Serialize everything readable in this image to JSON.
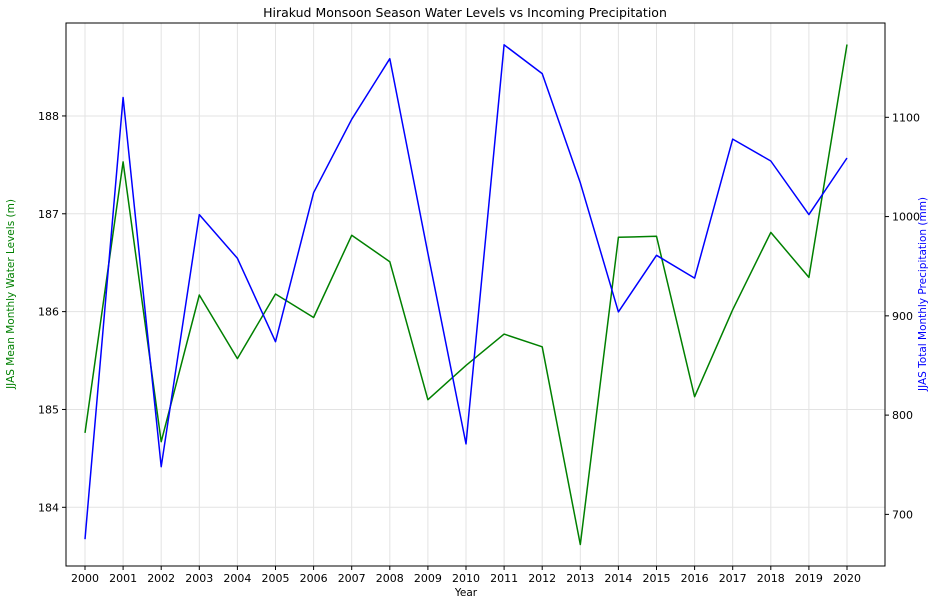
{
  "chart_data": {
    "type": "line",
    "title": "Hirakud Monsoon Season Water Levels vs Incoming Precipitation",
    "xlabel": "Year",
    "ylabel_left": "JJAS Mean Monthly Water Levels (m)",
    "ylabel_right": "JJAS Total Monthly Precipitation (mm)",
    "x": [
      "2000",
      "2001",
      "2002",
      "2003",
      "2004",
      "2005",
      "2006",
      "2007",
      "2008",
      "2009",
      "2010",
      "2011",
      "2012",
      "2013",
      "2014",
      "2015",
      "2016",
      "2017",
      "2018",
      "2019",
      "2020"
    ],
    "y_left_ticks": [
      184,
      185,
      186,
      187,
      188
    ],
    "y_right_ticks": [
      700,
      800,
      900,
      1000,
      1100
    ],
    "ylim_left": [
      183.4,
      188.95
    ],
    "ylim_right": [
      648,
      1195
    ],
    "grid": true,
    "series": [
      {
        "axis": "left",
        "color": "#008000",
        "values": [
          184.76,
          187.53,
          184.67,
          186.17,
          185.52,
          186.18,
          185.94,
          186.78,
          186.51,
          185.1,
          185.45,
          185.77,
          185.64,
          183.62,
          186.76,
          186.77,
          185.13,
          186.02,
          186.81,
          186.35,
          188.73
        ]
      },
      {
        "axis": "right",
        "color": "#0000ff",
        "values": [
          675,
          1120,
          748,
          1002,
          958,
          874,
          1024,
          1098,
          1159,
          963,
          771,
          1173,
          1144,
          1034,
          904,
          961,
          938,
          1078,
          1056,
          1002,
          1059
        ]
      }
    ]
  }
}
